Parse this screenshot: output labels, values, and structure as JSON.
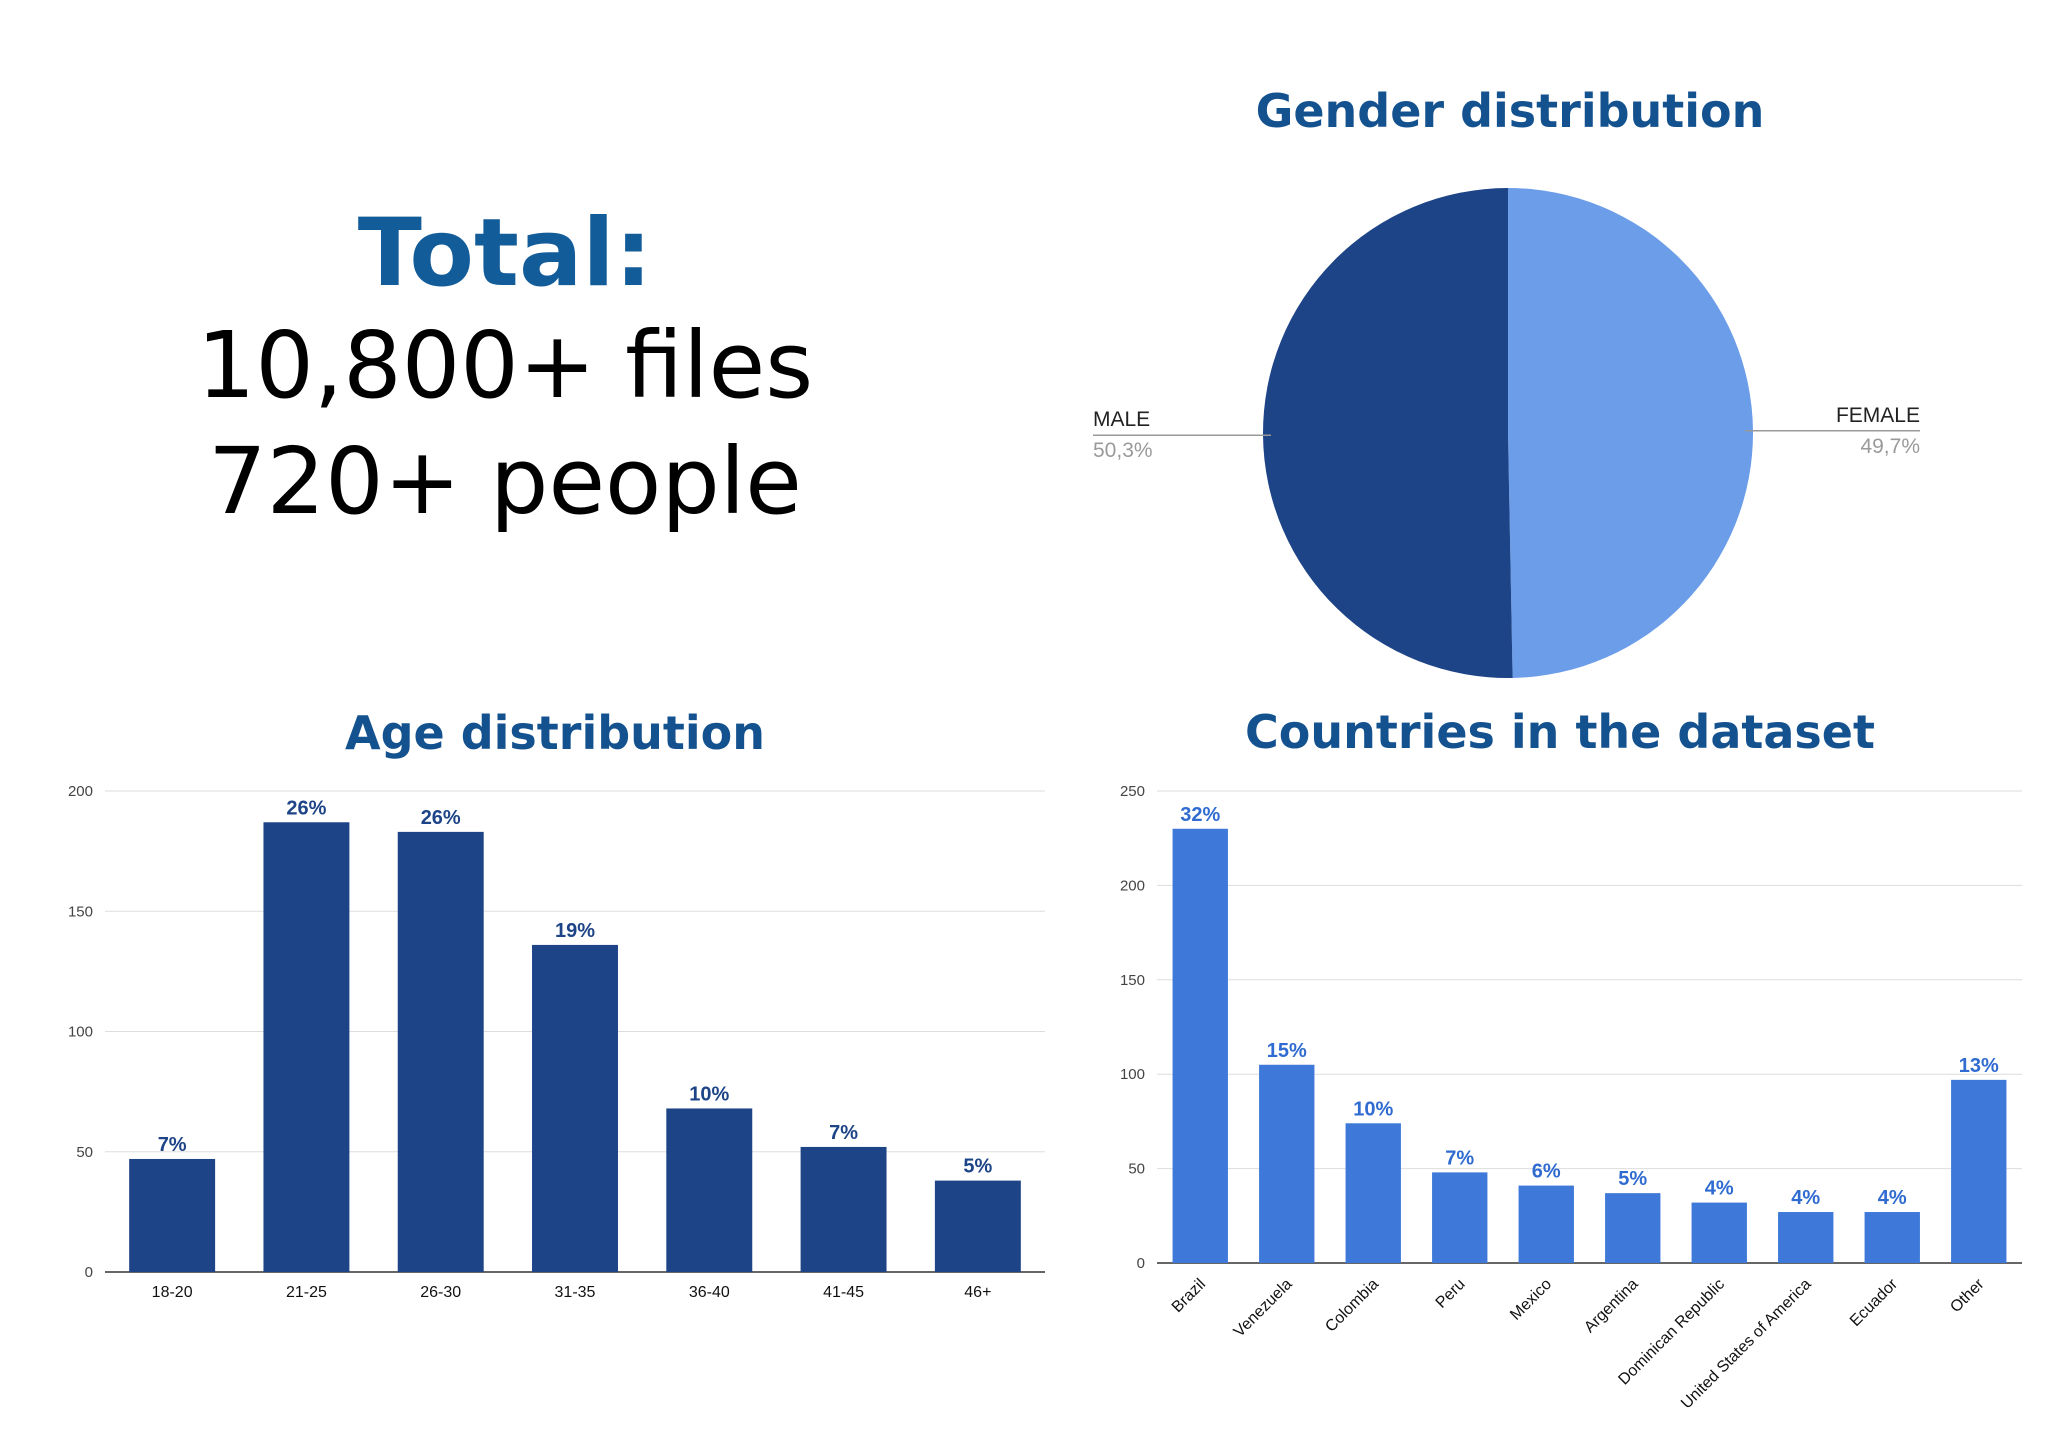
{
  "summary": {
    "title": "Total:",
    "files": "10,800+ files",
    "people": "720+ people"
  },
  "colors": {
    "title": "#14528f",
    "total_title": "#135c9a",
    "dark_blue": "#1d4487",
    "light_blue": "#6c9de9",
    "country_blue": "#3e79d9",
    "age_label": "#1d4487",
    "country_label": "#2f6bd0",
    "grid": "#dddddd",
    "pie_value": "#9a9a9a"
  },
  "chart_data": [
    {
      "type": "pie",
      "title": "Gender distribution",
      "slices": [
        {
          "label": "FEMALE",
          "value": 49.7,
          "value_label": "49,7%",
          "color": "#6c9de9"
        },
        {
          "label": "MALE",
          "value": 50.3,
          "value_label": "50,3%",
          "color": "#1d4487"
        }
      ]
    },
    {
      "type": "bar",
      "title": "Age distribution",
      "categories": [
        "18-20",
        "21-25",
        "26-30",
        "31-35",
        "36-40",
        "41-45",
        "46+"
      ],
      "values": [
        47,
        187,
        183,
        136,
        68,
        52,
        38
      ],
      "data_labels": [
        "7%",
        "26%",
        "26%",
        "19%",
        "10%",
        "7%",
        "5%"
      ],
      "ylim": [
        0,
        200
      ],
      "yticks": [
        0,
        50,
        100,
        150,
        200
      ],
      "grid": true,
      "color": "#1d4487"
    },
    {
      "type": "bar",
      "title": "Countries in the dataset",
      "categories": [
        "Brazil",
        "Venezuela",
        "Colombia",
        "Peru",
        "Mexico",
        "Argentina",
        "Dominican Republic",
        "United States of America",
        "Ecuador",
        "Other"
      ],
      "values": [
        230,
        105,
        74,
        48,
        41,
        37,
        32,
        27,
        27,
        97
      ],
      "data_labels": [
        "32%",
        "15%",
        "10%",
        "7%",
        "6%",
        "5%",
        "4%",
        "4%",
        "4%",
        "13%"
      ],
      "ylim": [
        0,
        250
      ],
      "yticks": [
        0,
        50,
        100,
        150,
        200,
        250
      ],
      "grid": true,
      "color": "#3e79d9"
    }
  ]
}
